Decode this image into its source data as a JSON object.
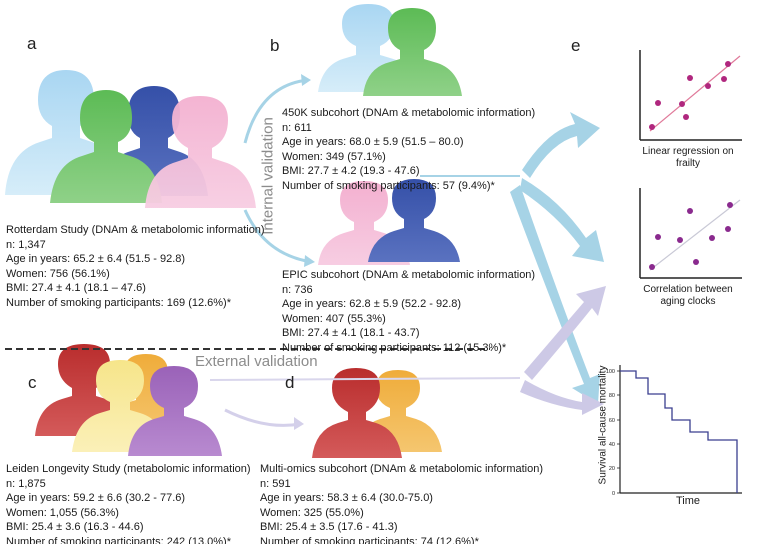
{
  "panels": {
    "a": {
      "letter": "a",
      "title": "Rotterdam Study (DNAm & metabolomic information)",
      "n": "n: 1,347",
      "age": "Age in years: 65.2 ± 6.4 (51.5 - 92.8)",
      "women": "Women: 756 (56.1%)",
      "bmi": "BMI: 27.4 ± 4.1 (18.1 – 47.6)",
      "smoking": "Number of smoking participants: 169 (12.6%)*"
    },
    "b": {
      "letter": "b",
      "sub450k": {
        "title": "450K subcohort (DNAm & metabolomic information)",
        "n": "n: 611",
        "age": "Age in years: 68.0 ± 5.9 (51.5 – 80.0)",
        "women": "Women: 349 (57.1%)",
        "bmi": "BMI: 27.7 ± 4.2 (19.3 - 47.6)",
        "smoking": "Number of smoking participants: 57 (9.4%)*"
      },
      "epic": {
        "title": "EPIC subcohort (DNAm & metabolomic information)",
        "n": "n: 736",
        "age": "Age in years: 62.8 ± 5.9 (52.2 - 92.8)",
        "women": "Women: 407 (55.3%)",
        "bmi": "BMI: 27.4 ± 4.1 (18.1 - 43.7)",
        "smoking": "Number of smoking participants: 112 (15.3%)*"
      }
    },
    "c": {
      "letter": "c",
      "title": "Leiden Longevity Study (metabolomic information)",
      "n": "n: 1,875",
      "age": "Age in years: 59.2 ± 6.6 (30.2 - 77.6)",
      "women": "Women: 1,055 (56.3%)",
      "bmi": "BMI: 25.4 ± 3.6 (16.3 - 44.6)",
      "smoking": "Number of smoking participants: 242 (13.0%)*"
    },
    "d": {
      "letter": "d",
      "title": "Multi-omics subcohort (DNAm & metabolomic information)",
      "n": "n: 591",
      "age": "Age in years: 58.3 ± 6.4 (30.0-75.0)",
      "women": "Women: 325 (55.0%)",
      "bmi": "BMI: 25.4 ± 3.5 (17.6 - 41.3)",
      "smoking": "Number of smoking participants: 74 (12.6%)*"
    },
    "e": {
      "letter": "e",
      "chart1_caption_l1": "Linear regression on",
      "chart1_caption_l2": "frailty",
      "chart2_caption_l1": "Correlation between",
      "chart2_caption_l2": "aging clocks",
      "km_ylabel": "Survival all-cause mortality",
      "km_xlabel": "Time",
      "km_tick_labels": [
        "100",
        "80",
        "60",
        "40",
        "20",
        "0"
      ]
    }
  },
  "labels": {
    "internal": "Internal validation",
    "external": "External validation"
  },
  "colors": {
    "person_light_blue": "#a9d6f2",
    "person_green": "#5cbb55",
    "person_dark_blue": "#3550a8",
    "person_pink": "#f3b0d0",
    "person_red": "#b92d2d",
    "person_yellow": "#f6e58a",
    "person_orange": "#efac3a",
    "person_purple": "#9a62b8",
    "arrow_blue": "#a6d3e6",
    "arrow_lavender": "#cdc9e6",
    "dot_purple": "#a0287a",
    "fit_line": "#e07a9a",
    "km_line": "#3a3f8f"
  }
}
